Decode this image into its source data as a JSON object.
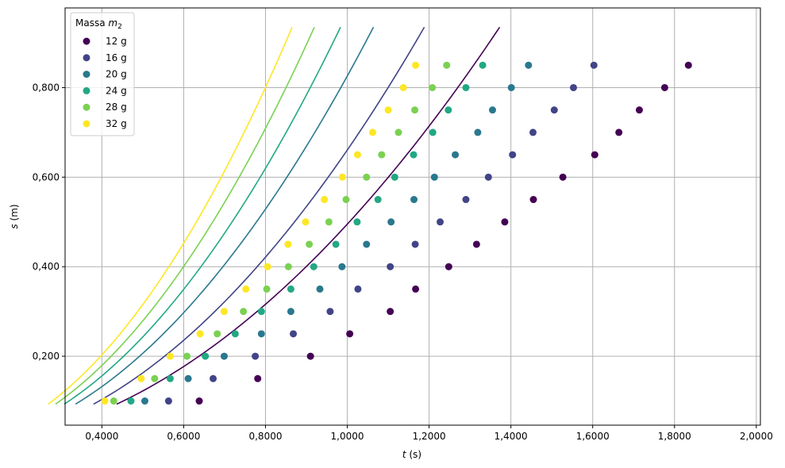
{
  "chart_data": {
    "type": "scatter",
    "title": "",
    "xlabel": "t (s)",
    "ylabel": "s (m)",
    "xlabel_var": "t",
    "xlabel_unit": " (s)",
    "ylabel_var": "s",
    "ylabel_unit": " (m)",
    "xlim": [
      0.31,
      2.01
    ],
    "ylim": [
      0.046,
      0.978
    ],
    "xticks": [
      0.4,
      0.6,
      0.8,
      1.0,
      1.2,
      1.4,
      1.6,
      1.8,
      2.0
    ],
    "xtick_labels": [
      "0,4000",
      "0,6000",
      "0,8000",
      "1,0000",
      "1,2000",
      "1,4000",
      "1,6000",
      "1,8000",
      "2,0000"
    ],
    "yticks": [
      0.2,
      0.4,
      0.6,
      0.8
    ],
    "ytick_labels": [
      "0,200",
      "0,400",
      "0,600",
      "0,800"
    ],
    "grid": true,
    "legend": {
      "title_prefix": "Massa ",
      "title_var": "m",
      "title_sub": "2",
      "placement": "top-left"
    },
    "fit_y_range": [
      0.093,
      0.935
    ],
    "series": [
      {
        "name": "12 g",
        "color": "#440154",
        "fit_a": 0.5,
        "fit_t0": 0.005,
        "x": [
          0.638,
          0.781,
          0.91,
          1.006,
          1.105,
          1.167,
          1.248,
          1.316,
          1.385,
          1.455,
          1.527,
          1.605,
          1.664,
          1.714,
          1.776,
          1.834
        ],
        "y": [
          0.1,
          0.15,
          0.2,
          0.25,
          0.3,
          0.35,
          0.4,
          0.45,
          0.5,
          0.55,
          0.6,
          0.65,
          0.7,
          0.75,
          0.8,
          0.85
        ]
      },
      {
        "name": "16 g",
        "color": "#414487",
        "fit_a": 0.67,
        "fit_t0": 0.007,
        "x": [
          0.563,
          0.672,
          0.775,
          0.868,
          0.958,
          1.026,
          1.105,
          1.166,
          1.227,
          1.29,
          1.345,
          1.404,
          1.454,
          1.506,
          1.553,
          1.603
        ],
        "y": [
          0.1,
          0.15,
          0.2,
          0.25,
          0.3,
          0.35,
          0.4,
          0.45,
          0.5,
          0.55,
          0.6,
          0.65,
          0.7,
          0.75,
          0.8,
          0.85
        ]
      },
      {
        "name": "20 g",
        "color": "#2a788e",
        "fit_a": 0.826,
        "fit_t0": 0.0,
        "x": [
          0.505,
          0.611,
          0.699,
          0.79,
          0.862,
          0.933,
          0.987,
          1.047,
          1.107,
          1.163,
          1.213,
          1.264,
          1.319,
          1.355,
          1.401,
          1.443
        ],
        "y": [
          0.1,
          0.15,
          0.2,
          0.25,
          0.3,
          0.35,
          0.4,
          0.45,
          0.5,
          0.55,
          0.6,
          0.65,
          0.7,
          0.75,
          0.8,
          0.85
        ]
      },
      {
        "name": "24 g",
        "color": "#22a884",
        "fit_a": 0.961,
        "fit_t0": -0.003,
        "x": [
          0.471,
          0.567,
          0.653,
          0.726,
          0.79,
          0.862,
          0.918,
          0.972,
          1.024,
          1.075,
          1.116,
          1.162,
          1.209,
          1.247,
          1.29,
          1.331
        ],
        "y": [
          0.1,
          0.15,
          0.2,
          0.25,
          0.3,
          0.35,
          0.4,
          0.45,
          0.5,
          0.55,
          0.6,
          0.65,
          0.7,
          0.75,
          0.8,
          0.85
        ]
      },
      {
        "name": "28 g",
        "color": "#7ad151",
        "fit_a": 1.094,
        "fit_t0": -0.005,
        "x": [
          0.429,
          0.529,
          0.608,
          0.682,
          0.746,
          0.803,
          0.856,
          0.907,
          0.955,
          0.997,
          1.047,
          1.084,
          1.125,
          1.165,
          1.208,
          1.243
        ],
        "y": [
          0.1,
          0.15,
          0.2,
          0.25,
          0.3,
          0.35,
          0.4,
          0.45,
          0.5,
          0.55,
          0.6,
          0.65,
          0.7,
          0.75,
          0.8,
          0.85
        ]
      },
      {
        "name": "32 g",
        "color": "#fde725",
        "fit_a": 1.232,
        "fit_t0": -0.006,
        "x": [
          0.407,
          0.496,
          0.567,
          0.64,
          0.699,
          0.752,
          0.805,
          0.855,
          0.898,
          0.944,
          0.988,
          1.025,
          1.062,
          1.1,
          1.137,
          1.167
        ],
        "y": [
          0.1,
          0.15,
          0.2,
          0.25,
          0.3,
          0.35,
          0.4,
          0.45,
          0.5,
          0.55,
          0.6,
          0.65,
          0.7,
          0.75,
          0.8,
          0.85
        ]
      }
    ]
  }
}
